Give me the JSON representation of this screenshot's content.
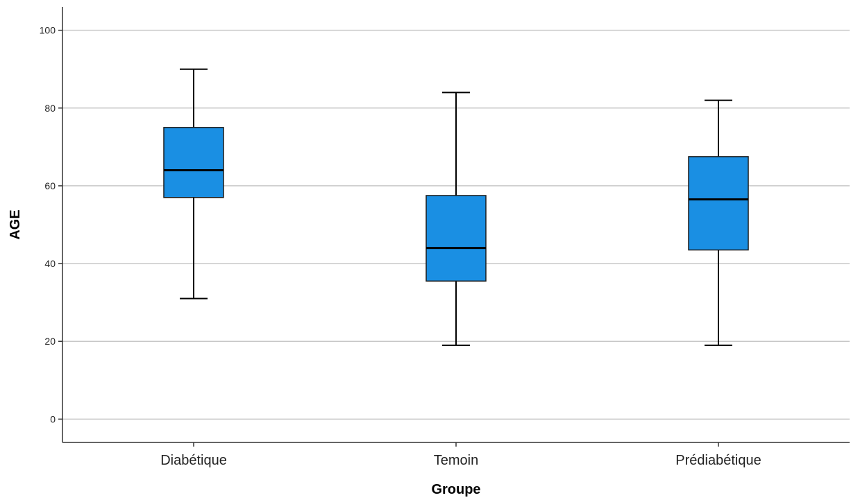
{
  "chart_data": {
    "type": "boxplot",
    "title": "",
    "xlabel": "Groupe",
    "ylabel": "AGE",
    "ylim": [
      -6,
      106
    ],
    "yticks": [
      0,
      20,
      40,
      60,
      80,
      100
    ],
    "ytick_labels": [
      "0",
      "20",
      "40",
      "60",
      "80",
      "100"
    ],
    "grid": true,
    "categories": [
      "Diabétique",
      "Temoin",
      "Prédiabétique"
    ],
    "boxes": [
      {
        "category": "Diabétique",
        "min": 31,
        "q1": 57,
        "median": 64,
        "q3": 75,
        "max": 90
      },
      {
        "category": "Temoin",
        "min": 19,
        "q1": 35.5,
        "median": 44,
        "q3": 57.5,
        "max": 84
      },
      {
        "category": "Prédiabétique",
        "min": 19,
        "q1": 43.5,
        "median": 56.5,
        "q3": 67.5,
        "max": 82
      }
    ],
    "colors": {
      "box_fill": "#1a8fe3",
      "box_stroke": "#1a1a1a",
      "median": "#000000",
      "whisker": "#000000",
      "grid": "#c8c8c8",
      "axis": "#333333"
    }
  }
}
